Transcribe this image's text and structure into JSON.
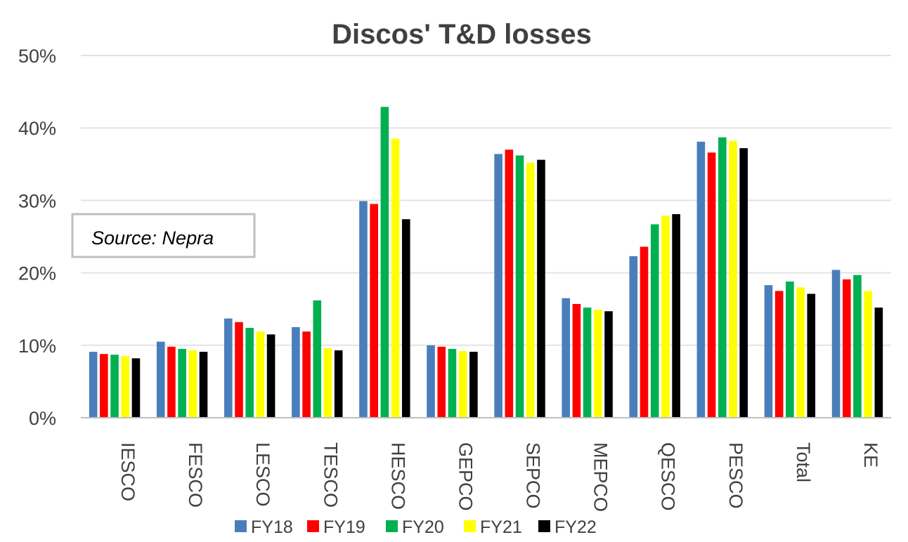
{
  "chart_data": {
    "type": "bar",
    "title": "Discos' T&D losses",
    "xlabel": "",
    "ylabel": "",
    "ylim": [
      0,
      50
    ],
    "yticks": [
      0,
      10,
      20,
      30,
      40,
      50
    ],
    "ytick_labels": [
      "0%",
      "10%",
      "20%",
      "30%",
      "40%",
      "50%"
    ],
    "grid": true,
    "legend_position": "bottom",
    "annotation": "Source: Nepra",
    "categories": [
      "IESCO",
      "FESCO",
      "LESCO",
      "TESCO",
      "HESCO",
      "GEPCO",
      "SEPCO",
      "MEPCO",
      "QESCO",
      "PESCO",
      "Total",
      "KE"
    ],
    "series": [
      {
        "name": "FY18",
        "color": "#4a7ebb",
        "values": [
          9.1,
          10.5,
          13.7,
          12.5,
          29.9,
          10.0,
          36.4,
          16.5,
          22.3,
          38.1,
          18.3,
          20.4
        ]
      },
      {
        "name": "FY19",
        "color": "#ff0000",
        "values": [
          8.8,
          9.8,
          13.2,
          11.9,
          29.5,
          9.8,
          37.0,
          15.7,
          23.6,
          36.6,
          17.5,
          19.1
        ]
      },
      {
        "name": "FY20",
        "color": "#00b050",
        "values": [
          8.7,
          9.5,
          12.4,
          16.2,
          42.9,
          9.5,
          36.2,
          15.2,
          26.7,
          38.7,
          18.8,
          19.7
        ]
      },
      {
        "name": "FY21",
        "color": "#ffff00",
        "values": [
          8.5,
          9.3,
          11.9,
          9.6,
          38.5,
          9.2,
          35.2,
          14.9,
          27.9,
          38.2,
          18.0,
          17.5
        ]
      },
      {
        "name": "FY22",
        "color": "#000000",
        "values": [
          8.2,
          9.1,
          11.5,
          9.3,
          27.4,
          9.1,
          35.6,
          14.7,
          28.1,
          37.2,
          17.1,
          15.2
        ]
      }
    ]
  }
}
